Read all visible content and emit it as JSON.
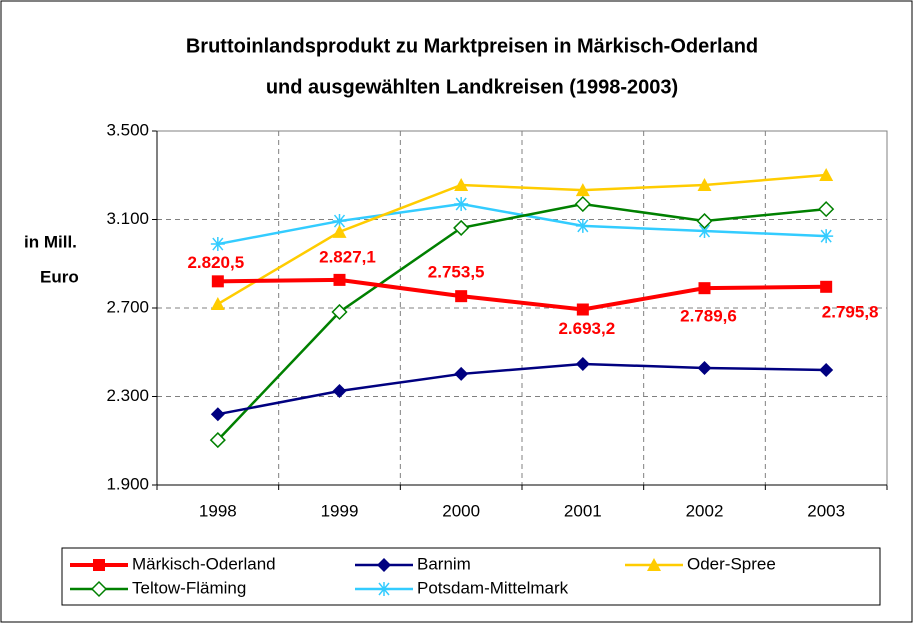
{
  "chart_data": {
    "type": "line",
    "title": [
      "Bruttoinlandsprodukt zu Marktpreisen in Märkisch-Oderland",
      "und ausgewählten Landkreisen (1998-2003)"
    ],
    "y_label": [
      "in Mill.",
      "Euro"
    ],
    "categories": [
      "1998",
      "1999",
      "2000",
      "2001",
      "2002",
      "2003"
    ],
    "ylim": [
      1900,
      3500
    ],
    "yticks": [
      {
        "value": 1900,
        "label": "1.900"
      },
      {
        "value": 2300,
        "label": "2.300"
      },
      {
        "value": 2700,
        "label": "2.700"
      },
      {
        "value": 3100,
        "label": "3.100"
      },
      {
        "value": 3500,
        "label": "3.500"
      }
    ],
    "grid": true,
    "legend": "bottom",
    "series": [
      {
        "name": "Märkisch-Oderland",
        "color": "#ff0000",
        "marker": "square",
        "values": [
          2820.5,
          2827.1,
          2753.5,
          2693.2,
          2789.6,
          2795.8
        ],
        "value_labels": [
          "2.820,5",
          "2.827,1",
          "2.753,5",
          "2.693,2",
          "2.789,6",
          "2.795,8"
        ]
      },
      {
        "name": "Barnim",
        "color": "#000080",
        "marker": "diamond",
        "values": [
          2220,
          2325,
          2402,
          2447,
          2429,
          2420
        ]
      },
      {
        "name": "Oder-Spree",
        "color": "#ffcc00",
        "marker": "triangle",
        "values": [
          2718,
          3044,
          3256,
          3233,
          3256,
          3301
        ]
      },
      {
        "name": "Teltow-Fläming",
        "color": "#008000",
        "marker": "open-diamond",
        "values": [
          2103,
          2682,
          3062,
          3170,
          3093,
          3147
        ]
      },
      {
        "name": "Potsdam-Mittelmark",
        "color": "#33ccff",
        "marker": "asterisk",
        "values": [
          2989,
          3093,
          3170,
          3071,
          3048,
          3025
        ]
      }
    ]
  }
}
